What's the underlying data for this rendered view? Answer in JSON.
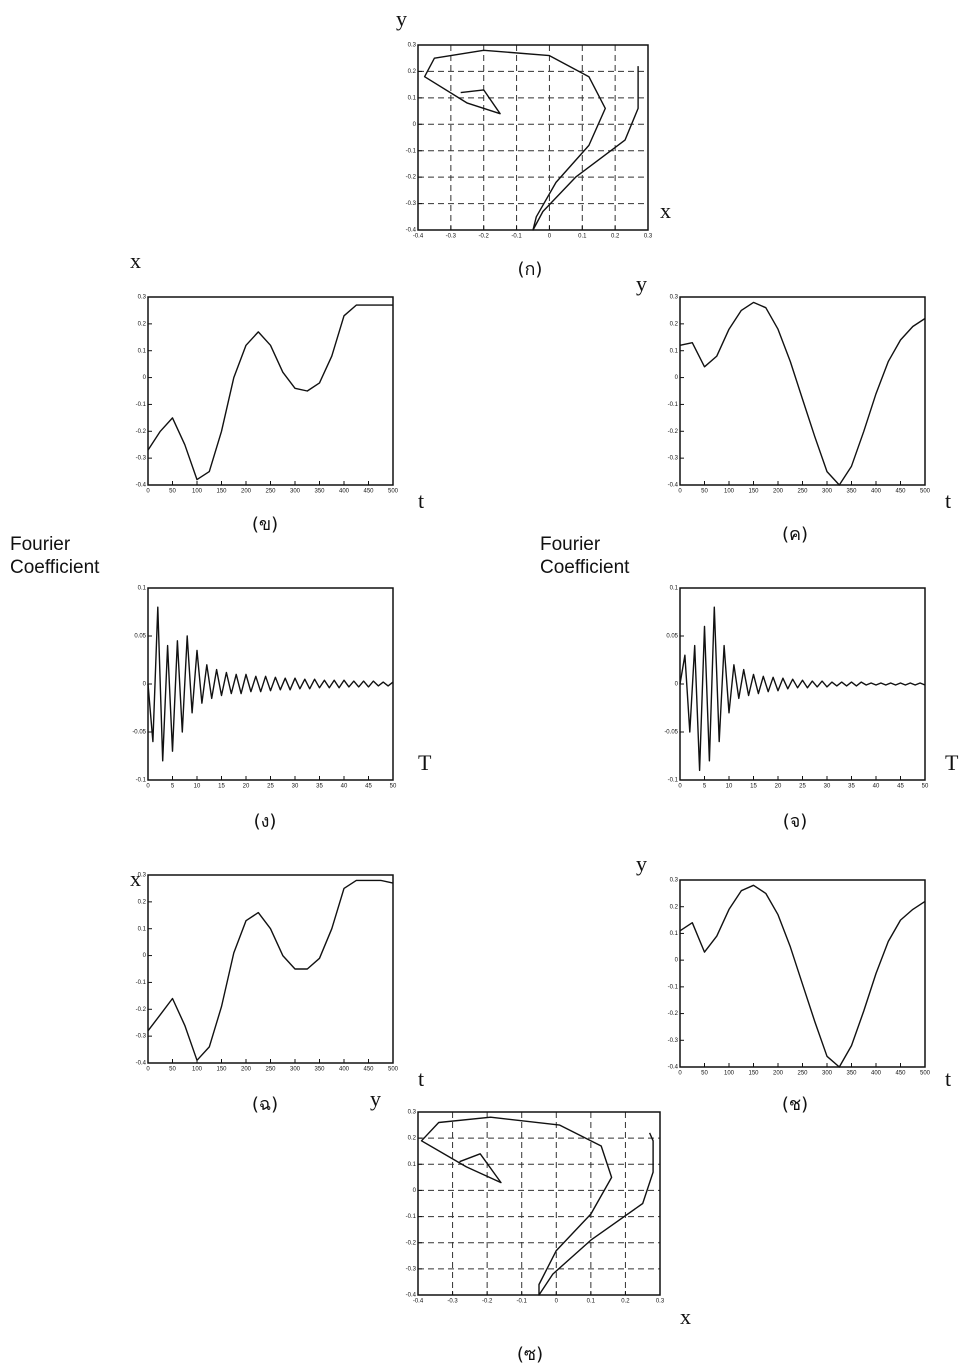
{
  "chart_data": [
    {
      "type": "line",
      "caption": "(ก)",
      "xlabel": "x",
      "ylabel": "y",
      "grid": true,
      "color": "#111111",
      "x": [
        -0.27,
        -0.2,
        -0.15,
        -0.25,
        -0.38,
        -0.35,
        -0.2,
        0.0,
        0.12,
        0.17,
        0.12,
        0.02,
        -0.04,
        -0.05,
        -0.02,
        0.08,
        0.23,
        0.27,
        0.27,
        0.27,
        0.27
      ],
      "series": [
        {
          "color": "#111111",
          "values": [
            0.12,
            0.13,
            0.04,
            0.08,
            0.18,
            0.25,
            0.28,
            0.26,
            0.18,
            0.06,
            -0.08,
            -0.22,
            -0.35,
            -0.4,
            -0.33,
            -0.2,
            -0.06,
            0.06,
            0.14,
            0.19,
            0.22
          ]
        }
      ],
      "xlim": [
        -0.4,
        0.3
      ],
      "ylim": [
        -0.4,
        0.3
      ],
      "xticks": [
        -0.4,
        -0.3,
        -0.2,
        -0.1,
        0,
        0.1,
        0.2,
        0.3
      ],
      "yticks": [
        -0.4,
        -0.3,
        -0.2,
        -0.1,
        0,
        0.1,
        0.2,
        0.3
      ]
    },
    {
      "type": "line",
      "caption": "(ข)",
      "xlabel": "t",
      "ylabel": "x",
      "grid": false,
      "color": "#111111",
      "x": [
        0,
        25,
        50,
        75,
        100,
        125,
        150,
        175,
        200,
        225,
        250,
        275,
        300,
        325,
        350,
        375,
        400,
        425,
        450,
        475,
        500
      ],
      "series": [
        {
          "color": "#111111",
          "values": [
            -0.27,
            -0.2,
            -0.15,
            -0.25,
            -0.38,
            -0.35,
            -0.2,
            0.0,
            0.12,
            0.17,
            0.12,
            0.02,
            -0.04,
            -0.05,
            -0.02,
            0.08,
            0.23,
            0.27,
            0.27,
            0.27,
            0.27
          ]
        }
      ],
      "xlim": [
        0,
        500
      ],
      "ylim": [
        -0.4,
        0.3
      ],
      "xticks": [
        0,
        50,
        100,
        150,
        200,
        250,
        300,
        350,
        400,
        450,
        500
      ],
      "yticks": [
        -0.4,
        -0.3,
        -0.2,
        -0.1,
        0,
        0.1,
        0.2,
        0.3
      ]
    },
    {
      "type": "line",
      "caption": "(ค)",
      "xlabel": "t",
      "ylabel": "y",
      "grid": false,
      "color": "#111111",
      "x": [
        0,
        25,
        50,
        75,
        100,
        125,
        150,
        175,
        200,
        225,
        250,
        275,
        300,
        325,
        350,
        375,
        400,
        425,
        450,
        475,
        500
      ],
      "series": [
        {
          "color": "#111111",
          "values": [
            0.12,
            0.13,
            0.04,
            0.08,
            0.18,
            0.25,
            0.28,
            0.26,
            0.18,
            0.06,
            -0.08,
            -0.22,
            -0.35,
            -0.4,
            -0.33,
            -0.2,
            -0.06,
            0.06,
            0.14,
            0.19,
            0.22
          ]
        }
      ],
      "xlim": [
        0,
        500
      ],
      "ylim": [
        -0.4,
        0.3
      ],
      "xticks": [
        0,
        50,
        100,
        150,
        200,
        250,
        300,
        350,
        400,
        450,
        500
      ],
      "yticks": [
        -0.4,
        -0.3,
        -0.2,
        -0.1,
        0,
        0.1,
        0.2,
        0.3
      ]
    },
    {
      "type": "line",
      "caption": "(ง)",
      "xlabel": "T",
      "ylabel": "Fourier Coefficient",
      "grid": false,
      "color": "#111111",
      "x": [
        0,
        1,
        2,
        3,
        4,
        5,
        6,
        7,
        8,
        9,
        10,
        11,
        12,
        13,
        14,
        15,
        16,
        17,
        18,
        19,
        20,
        21,
        22,
        23,
        24,
        25,
        26,
        27,
        28,
        29,
        30,
        31,
        32,
        33,
        34,
        35,
        36,
        37,
        38,
        39,
        40,
        41,
        42,
        43,
        44,
        45,
        46,
        47,
        48,
        49,
        50
      ],
      "series": [
        {
          "color": "#111111",
          "values": [
            0,
            -0.06,
            0.08,
            -0.08,
            0.04,
            -0.07,
            0.045,
            -0.05,
            0.05,
            -0.03,
            0.035,
            -0.02,
            0.02,
            -0.015,
            0.015,
            -0.012,
            0.012,
            -0.01,
            0.01,
            -0.01,
            0.01,
            -0.008,
            0.008,
            -0.008,
            0.008,
            -0.007,
            0.007,
            -0.006,
            0.006,
            -0.006,
            0.006,
            -0.005,
            0.005,
            -0.005,
            0.005,
            -0.004,
            0.004,
            -0.004,
            0.004,
            -0.004,
            0.004,
            -0.003,
            0.003,
            -0.003,
            0.003,
            -0.003,
            0.003,
            -0.002,
            0.002,
            -0.002,
            0.002
          ]
        }
      ],
      "xlim": [
        0,
        50
      ],
      "ylim": [
        -0.1,
        0.1
      ],
      "xticks": [
        0,
        5,
        10,
        15,
        20,
        25,
        30,
        35,
        40,
        45,
        50
      ],
      "yticks": [
        -0.1,
        -0.05,
        0,
        0.05,
        0.1
      ]
    },
    {
      "type": "line",
      "caption": "(จ)",
      "xlabel": "T",
      "ylabel": "Fourier Coefficient",
      "grid": false,
      "color": "#111111",
      "x": [
        0,
        1,
        2,
        3,
        4,
        5,
        6,
        7,
        8,
        9,
        10,
        11,
        12,
        13,
        14,
        15,
        16,
        17,
        18,
        19,
        20,
        21,
        22,
        23,
        24,
        25,
        26,
        27,
        28,
        29,
        30,
        31,
        32,
        33,
        34,
        35,
        36,
        37,
        38,
        39,
        40,
        41,
        42,
        43,
        44,
        45,
        46,
        47,
        48,
        49,
        50
      ],
      "series": [
        {
          "color": "#111111",
          "values": [
            0,
            0.03,
            -0.05,
            0.04,
            -0.09,
            0.06,
            -0.08,
            0.08,
            -0.06,
            0.04,
            -0.03,
            0.02,
            -0.015,
            0.015,
            -0.012,
            0.01,
            -0.01,
            0.008,
            -0.008,
            0.007,
            -0.007,
            0.006,
            -0.005,
            0.005,
            -0.004,
            0.004,
            -0.004,
            0.003,
            -0.003,
            0.003,
            -0.003,
            0.002,
            -0.002,
            0.002,
            -0.002,
            0.002,
            -0.002,
            0.002,
            -0.001,
            0.001,
            -0.001,
            0.001,
            -0.001,
            0.001,
            -0.001,
            0.001,
            -0.001,
            0.001,
            -0.001,
            0.001,
            -0.001
          ]
        }
      ],
      "xlim": [
        0,
        50
      ],
      "ylim": [
        -0.1,
        0.1
      ],
      "xticks": [
        0,
        5,
        10,
        15,
        20,
        25,
        30,
        35,
        40,
        45,
        50
      ],
      "yticks": [
        -0.1,
        -0.05,
        0,
        0.05,
        0.1
      ]
    },
    {
      "type": "line",
      "caption": "(ฉ)",
      "xlabel": "t",
      "ylabel": "x",
      "grid": false,
      "color": "#111111",
      "x": [
        0,
        25,
        50,
        75,
        100,
        125,
        150,
        175,
        200,
        225,
        250,
        275,
        300,
        325,
        350,
        375,
        400,
        425,
        450,
        475,
        500
      ],
      "series": [
        {
          "color": "#111111",
          "values": [
            -0.28,
            -0.22,
            -0.16,
            -0.26,
            -0.39,
            -0.34,
            -0.19,
            0.01,
            0.13,
            0.16,
            0.1,
            0.0,
            -0.05,
            -0.05,
            -0.01,
            0.1,
            0.25,
            0.28,
            0.28,
            0.28,
            0.27
          ]
        }
      ],
      "xlim": [
        0,
        500
      ],
      "ylim": [
        -0.4,
        0.3
      ],
      "xticks": [
        0,
        50,
        100,
        150,
        200,
        250,
        300,
        350,
        400,
        450,
        500
      ],
      "yticks": [
        -0.4,
        -0.3,
        -0.2,
        -0.1,
        0,
        0.1,
        0.2,
        0.3
      ]
    },
    {
      "type": "line",
      "caption": "(ช)",
      "xlabel": "t",
      "ylabel": "y",
      "grid": false,
      "color": "#111111",
      "x": [
        0,
        25,
        50,
        75,
        100,
        125,
        150,
        175,
        200,
        225,
        250,
        275,
        300,
        325,
        350,
        375,
        400,
        425,
        450,
        475,
        500
      ],
      "series": [
        {
          "color": "#111111",
          "values": [
            0.11,
            0.14,
            0.03,
            0.09,
            0.19,
            0.26,
            0.28,
            0.25,
            0.17,
            0.05,
            -0.09,
            -0.23,
            -0.36,
            -0.4,
            -0.32,
            -0.19,
            -0.05,
            0.07,
            0.15,
            0.19,
            0.22
          ]
        }
      ],
      "xlim": [
        0,
        500
      ],
      "ylim": [
        -0.4,
        0.3
      ],
      "xticks": [
        0,
        50,
        100,
        150,
        200,
        250,
        300,
        350,
        400,
        450,
        500
      ],
      "yticks": [
        -0.4,
        -0.3,
        -0.2,
        -0.1,
        0,
        0.1,
        0.2,
        0.3
      ]
    },
    {
      "type": "line",
      "caption": "(ซ)",
      "xlabel": "x",
      "ylabel": "y",
      "grid": true,
      "color": "#111111",
      "x": [
        -0.28,
        -0.22,
        -0.16,
        -0.26,
        -0.39,
        -0.34,
        -0.19,
        0.01,
        0.13,
        0.16,
        0.1,
        0.0,
        -0.05,
        -0.05,
        -0.01,
        0.1,
        0.25,
        0.28,
        0.28,
        0.28,
        0.27
      ],
      "series": [
        {
          "color": "#111111",
          "values": [
            0.11,
            0.14,
            0.03,
            0.09,
            0.19,
            0.26,
            0.28,
            0.25,
            0.17,
            0.05,
            -0.09,
            -0.23,
            -0.36,
            -0.4,
            -0.32,
            -0.19,
            -0.05,
            0.07,
            0.15,
            0.19,
            0.22
          ]
        }
      ],
      "xlim": [
        -0.4,
        0.3
      ],
      "ylim": [
        -0.4,
        0.3
      ],
      "xticks": [
        -0.4,
        -0.3,
        -0.2,
        -0.1,
        0,
        0.1,
        0.2,
        0.3
      ],
      "yticks": [
        -0.4,
        -0.3,
        -0.2,
        -0.1,
        0,
        0.1,
        0.2,
        0.3
      ]
    }
  ]
}
